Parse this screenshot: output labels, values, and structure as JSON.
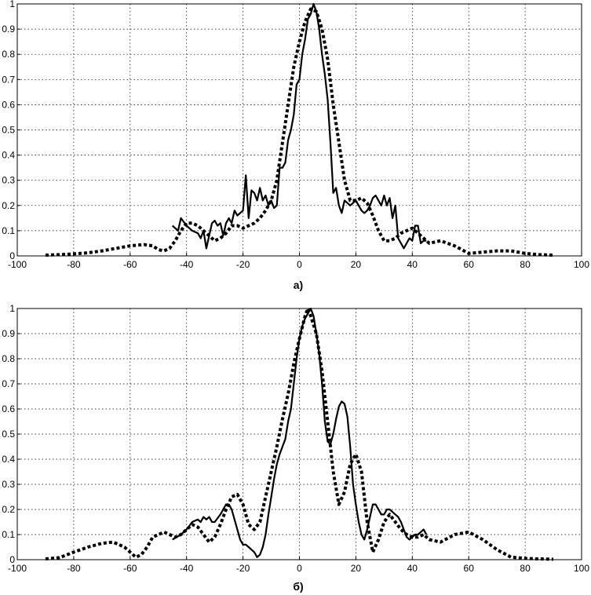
{
  "chart_data": [
    {
      "type": "line",
      "caption": "а)",
      "xlim": [
        -100,
        100
      ],
      "ylim": [
        0,
        1
      ],
      "xticks": [
        "-100",
        "-80",
        "-60",
        "-40",
        "-20",
        "0",
        "20",
        "40",
        "60",
        "80",
        "100"
      ],
      "yticks": [
        "0",
        "0.1",
        "0.2",
        "0.3",
        "0.4",
        "0.5",
        "0.6",
        "0.7",
        "0.8",
        "0.9",
        "1"
      ],
      "grid": true,
      "series": [
        {
          "style": "solid",
          "x": [
            -45,
            -43,
            -42,
            -40,
            -38,
            -36,
            -35,
            -34,
            -33,
            -32,
            -31,
            -30,
            -29,
            -28,
            -27,
            -26,
            -25,
            -24,
            -23,
            -22,
            -21,
            -20,
            -19,
            -18,
            -17,
            -16,
            -15,
            -14,
            -13,
            -12,
            -11,
            -10,
            -9,
            -8,
            -7,
            -6,
            -5,
            -4,
            -3,
            -2,
            -1,
            0,
            1,
            2,
            3,
            4,
            5,
            6,
            7,
            8,
            9,
            10,
            11,
            12,
            13,
            14,
            15,
            16,
            17,
            18,
            19,
            20,
            21,
            22,
            23,
            24,
            25,
            26,
            27,
            28,
            29,
            30,
            31,
            32,
            33,
            34,
            35,
            36,
            37,
            38,
            39,
            40,
            41,
            42,
            43,
            44,
            45
          ],
          "y": [
            0.12,
            0.1,
            0.15,
            0.12,
            0.1,
            0.09,
            0.07,
            0.1,
            0.03,
            0.08,
            0.13,
            0.14,
            0.12,
            0.13,
            0.08,
            0.13,
            0.15,
            0.13,
            0.18,
            0.16,
            0.17,
            0.18,
            0.32,
            0.15,
            0.26,
            0.25,
            0.22,
            0.27,
            0.22,
            0.24,
            0.2,
            0.22,
            0.19,
            0.2,
            0.35,
            0.35,
            0.37,
            0.46,
            0.5,
            0.56,
            0.68,
            0.7,
            0.8,
            0.86,
            0.94,
            0.96,
            1.0,
            0.97,
            0.9,
            0.8,
            0.72,
            0.62,
            0.45,
            0.25,
            0.27,
            0.2,
            0.17,
            0.22,
            0.21,
            0.2,
            0.21,
            0.22,
            0.2,
            0.18,
            0.17,
            0.18,
            0.2,
            0.23,
            0.24,
            0.22,
            0.2,
            0.24,
            0.2,
            0.23,
            0.15,
            0.2,
            0.07,
            0.05,
            0.03,
            0.05,
            0.07,
            0.06,
            0.12,
            0.12,
            0.05,
            0.06,
            0.06
          ]
        },
        {
          "style": "dotted",
          "x": [
            -90,
            -85,
            -80,
            -75,
            -70,
            -65,
            -60,
            -55,
            -52,
            -50,
            -48,
            -46,
            -44,
            -42,
            -40,
            -38,
            -36,
            -34,
            -32,
            -30,
            -28,
            -26,
            -24,
            -22,
            -20,
            -18,
            -16,
            -14,
            -12,
            -10,
            -8,
            -6,
            -4,
            -2,
            0,
            2,
            4,
            6,
            8,
            10,
            12,
            14,
            16,
            18,
            20,
            22,
            24,
            26,
            28,
            30,
            32,
            34,
            36,
            38,
            40,
            42,
            44,
            46,
            50,
            55,
            60,
            65,
            70,
            75,
            80,
            85,
            90
          ],
          "y": [
            0.003,
            0.005,
            0.008,
            0.012,
            0.02,
            0.03,
            0.04,
            0.045,
            0.04,
            0.025,
            0.02,
            0.03,
            0.06,
            0.1,
            0.13,
            0.13,
            0.12,
            0.1,
            0.08,
            0.06,
            0.07,
            0.09,
            0.12,
            0.12,
            0.11,
            0.12,
            0.13,
            0.15,
            0.18,
            0.22,
            0.3,
            0.45,
            0.6,
            0.75,
            0.85,
            0.93,
            0.98,
            0.97,
            0.9,
            0.78,
            0.6,
            0.45,
            0.3,
            0.22,
            0.22,
            0.23,
            0.21,
            0.16,
            0.1,
            0.06,
            0.06,
            0.07,
            0.09,
            0.1,
            0.11,
            0.09,
            0.07,
            0.05,
            0.06,
            0.04,
            0.01,
            0.015,
            0.02,
            0.02,
            0.01,
            0.005,
            0.003
          ]
        }
      ]
    },
    {
      "type": "line",
      "caption": "б)",
      "xlim": [
        -100,
        100
      ],
      "ylim": [
        0,
        1
      ],
      "xticks": [
        "-100",
        "-80",
        "-60",
        "-40",
        "-20",
        "0",
        "20",
        "40",
        "60",
        "80",
        "100"
      ],
      "yticks": [
        "0",
        "0.1",
        "0.2",
        "0.3",
        "0.4",
        "0.5",
        "0.6",
        "0.7",
        "0.8",
        "0.9",
        "1"
      ],
      "grid": true,
      "series": [
        {
          "style": "solid",
          "x": [
            -45,
            -42,
            -40,
            -38,
            -36,
            -35,
            -34,
            -33,
            -32,
            -31,
            -30,
            -28,
            -26,
            -25,
            -24,
            -23,
            -22,
            -21,
            -20,
            -19,
            -18,
            -17,
            -16,
            -15,
            -14,
            -13,
            -12,
            -11,
            -10,
            -9,
            -8,
            -7,
            -6,
            -5,
            -4,
            -3,
            -2,
            -1,
            0,
            1,
            2,
            3,
            4,
            5,
            6,
            7,
            8,
            9,
            10,
            11,
            12,
            13,
            14,
            15,
            16,
            17,
            18,
            19,
            20,
            21,
            22,
            23,
            24,
            25,
            26,
            27,
            28,
            29,
            30,
            31,
            32,
            33,
            34,
            35,
            36,
            37,
            38,
            39,
            40,
            41,
            42,
            43,
            44,
            45
          ],
          "y": [
            0.08,
            0.1,
            0.12,
            0.15,
            0.16,
            0.15,
            0.17,
            0.16,
            0.17,
            0.15,
            0.15,
            0.18,
            0.22,
            0.22,
            0.2,
            0.16,
            0.12,
            0.08,
            0.06,
            0.06,
            0.05,
            0.04,
            0.03,
            0.01,
            0.02,
            0.05,
            0.1,
            0.18,
            0.25,
            0.32,
            0.38,
            0.42,
            0.45,
            0.48,
            0.55,
            0.6,
            0.7,
            0.8,
            0.88,
            0.93,
            0.96,
            0.98,
            1.0,
            0.97,
            0.9,
            0.82,
            0.7,
            0.55,
            0.47,
            0.46,
            0.5,
            0.56,
            0.61,
            0.63,
            0.62,
            0.57,
            0.45,
            0.3,
            0.22,
            0.15,
            0.1,
            0.08,
            0.12,
            0.17,
            0.22,
            0.22,
            0.2,
            0.18,
            0.18,
            0.2,
            0.2,
            0.19,
            0.18,
            0.17,
            0.15,
            0.12,
            0.09,
            0.08,
            0.09,
            0.1,
            0.1,
            0.11,
            0.12,
            0.1
          ]
        },
        {
          "style": "dotted",
          "x": [
            -90,
            -85,
            -80,
            -75,
            -70,
            -66,
            -62,
            -58,
            -56,
            -54,
            -52,
            -50,
            -48,
            -46,
            -44,
            -42,
            -40,
            -38,
            -36,
            -34,
            -32,
            -30,
            -28,
            -26,
            -24,
            -22,
            -20,
            -18,
            -16,
            -14,
            -12,
            -10,
            -8,
            -6,
            -4,
            -2,
            0,
            2,
            3,
            4,
            6,
            8,
            10,
            12,
            14,
            16,
            18,
            20,
            22,
            24,
            26,
            28,
            30,
            32,
            34,
            36,
            38,
            40,
            42,
            44,
            46,
            50,
            55,
            60,
            65,
            70,
            75,
            80,
            85,
            90
          ],
          "y": [
            0.003,
            0.008,
            0.03,
            0.05,
            0.065,
            0.07,
            0.05,
            0.01,
            0.02,
            0.05,
            0.09,
            0.1,
            0.11,
            0.1,
            0.09,
            0.1,
            0.12,
            0.14,
            0.13,
            0.1,
            0.07,
            0.09,
            0.14,
            0.2,
            0.25,
            0.26,
            0.22,
            0.14,
            0.12,
            0.15,
            0.25,
            0.35,
            0.45,
            0.56,
            0.66,
            0.78,
            0.88,
            0.97,
            1.0,
            0.97,
            0.9,
            0.75,
            0.55,
            0.35,
            0.22,
            0.27,
            0.38,
            0.42,
            0.35,
            0.15,
            0.03,
            0.08,
            0.15,
            0.18,
            0.15,
            0.12,
            0.1,
            0.09,
            0.09,
            0.1,
            0.08,
            0.07,
            0.1,
            0.11,
            0.08,
            0.04,
            0.01,
            0.005,
            0.003,
            0.002
          ]
        }
      ]
    }
  ]
}
